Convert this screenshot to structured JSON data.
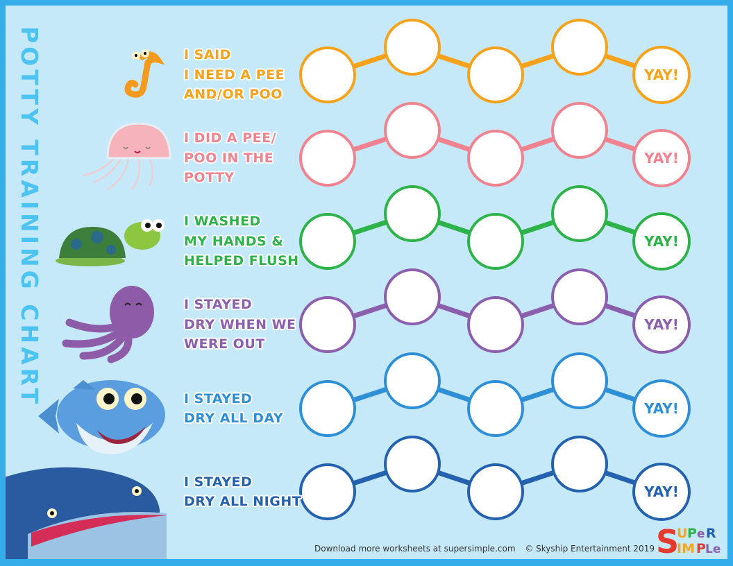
{
  "title": "POTTY TRAINING CHART",
  "rows": [
    {
      "lines": [
        "I SAID",
        "I NEED A PEE",
        "AND/OR POO"
      ],
      "color": "#f7a21b",
      "animal": "seahorse-icon",
      "end_label": "YAY!"
    },
    {
      "lines": [
        "I DID A PEE/",
        "POO IN THE",
        "POTTY"
      ],
      "color": "#f0838f",
      "animal": "jellyfish-icon",
      "end_label": "YAY!"
    },
    {
      "lines": [
        "I WASHED",
        "MY HANDS &",
        "HELPED FLUSH"
      ],
      "color": "#2db34a",
      "animal": "turtle-icon",
      "end_label": "YAY!"
    },
    {
      "lines": [
        "I STAYED",
        "DRY WHEN WE",
        "WERE OUT"
      ],
      "color": "#8b5fad",
      "animal": "octopus-icon",
      "end_label": "YAY!"
    },
    {
      "lines": [
        "I STAYED",
        "DRY ALL DAY"
      ],
      "color": "#2f8fd6",
      "animal": "shark-icon",
      "end_label": "YAY!"
    },
    {
      "lines": [
        "I STAYED",
        "DRY ALL NIGHT"
      ],
      "color": "#2462b0",
      "animal": "whale-icon",
      "end_label": "YAY!"
    }
  ],
  "footer": {
    "download": "Download more worksheets at supersimple.com",
    "copyright": "© Skyship Entertainment 2019"
  },
  "logo": {
    "text": "Super Simple"
  },
  "colors": {
    "border": "#36adeb",
    "background": "#c6e9f9",
    "title": "#4cc3f1"
  }
}
